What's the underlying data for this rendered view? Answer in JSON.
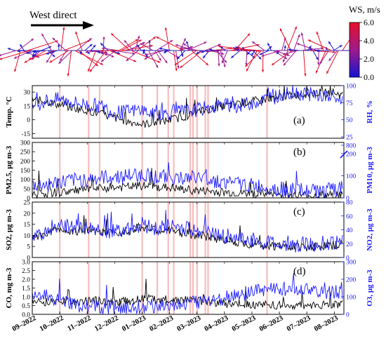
{
  "colors": {
    "black_series": "#000000",
    "blue_series": "#1a1aff",
    "highlight_band": "#f4a6a6",
    "ws_low": "#1414d2",
    "ws_mid": "#a01a8c",
    "ws_high": "#e6102a"
  },
  "wind_panel": {
    "direction_label": "West direct",
    "colorbar_title": "WS, m/s",
    "colorbar_ticks": [
      "0.0",
      "2.0",
      "4.0",
      "6.0"
    ],
    "colorbar_range": [
      0,
      6
    ]
  },
  "x_axis": {
    "ticks": [
      "09–2022",
      "10–2022",
      "11–2022",
      "12–2022",
      "01–2023",
      "02–2023",
      "03–2023",
      "04–2023",
      "05–2023",
      "06–2023",
      "07–2023",
      "08–2023"
    ]
  },
  "highlight_month_positions": [
    1.0,
    2.05,
    2.45,
    4.0,
    4.55,
    4.95,
    5.15,
    5.75,
    5.85,
    6.0,
    6.3,
    6.4,
    8.55
  ],
  "chart_data": [
    {
      "type": "line",
      "panel": "(a)",
      "x_unit": "month index (0 = 09–2022, 11 = 08–2023)",
      "left": {
        "label": "Temp. °C",
        "ticks": [
          "-15",
          "0",
          "15",
          "30"
        ],
        "ylim": [
          -20,
          37
        ]
      },
      "right": {
        "label": "RH, %",
        "ticks": [
          "25",
          "50",
          "75",
          "100"
        ],
        "ylim": [
          23,
          100
        ]
      },
      "series": [
        {
          "axis": "left",
          "color": "black",
          "x": [
            0,
            0.5,
            1,
            1.5,
            2,
            2.5,
            3,
            3.5,
            4,
            4.5,
            5,
            5.5,
            6,
            6.5,
            7,
            7.5,
            8,
            8.5,
            9,
            9.5,
            10,
            10.5,
            11,
            11.3
          ],
          "values": [
            22,
            20,
            16,
            13,
            10,
            6,
            2,
            -2,
            -5,
            -3,
            0,
            3,
            8,
            12,
            15,
            17,
            20,
            22,
            25,
            27,
            28,
            29,
            30,
            26
          ]
        },
        {
          "axis": "right",
          "color": "blue",
          "x": [
            0,
            0.5,
            1,
            1.5,
            2,
            2.5,
            3,
            3.5,
            4,
            4.5,
            5,
            5.5,
            6,
            6.5,
            7,
            7.5,
            8,
            8.5,
            9,
            9.5,
            10,
            10.5,
            11,
            11.3
          ],
          "values": [
            70,
            78,
            80,
            75,
            72,
            70,
            60,
            62,
            65,
            55,
            60,
            62,
            65,
            68,
            72,
            70,
            75,
            80,
            85,
            90,
            88,
            85,
            82,
            78
          ]
        }
      ]
    },
    {
      "type": "line",
      "panel": "(b)",
      "x_unit": "month index (0 = 09–2022, 11 = 08–2023)",
      "left": {
        "label": "PM2.5, μg m-3",
        "ticks": [
          "0",
          "50",
          "100",
          "150",
          "200",
          "250",
          "300"
        ],
        "ylim": [
          0,
          300
        ]
      },
      "right": {
        "label": "PM10, μg m-3",
        "ticks": [
          "0",
          "100",
          "200",
          "800"
        ],
        "ylim": [
          0,
          250
        ],
        "break": true
      },
      "series": [
        {
          "axis": "left",
          "color": "black",
          "x": [
            0,
            0.5,
            1,
            1.5,
            2,
            2.5,
            3,
            3.5,
            4,
            4.5,
            5,
            5.5,
            6,
            6.5,
            7,
            7.5,
            8,
            8.5,
            9,
            9.5,
            10,
            10.5,
            11,
            11.3
          ],
          "values": [
            22,
            25,
            30,
            38,
            45,
            50,
            55,
            60,
            65,
            58,
            55,
            45,
            40,
            35,
            30,
            26,
            22,
            20,
            15,
            12,
            12,
            13,
            15,
            18
          ]
        },
        {
          "axis": "right",
          "color": "blue",
          "x": [
            0,
            0.5,
            1,
            1.5,
            2,
            2.5,
            3,
            3.5,
            4,
            4.5,
            5,
            5.5,
            6,
            6.5,
            7,
            7.5,
            8,
            8.5,
            9,
            9.5,
            10,
            10.5,
            11,
            11.3
          ],
          "values": [
            55,
            60,
            70,
            78,
            85,
            90,
            95,
            100,
            105,
            95,
            92,
            85,
            95,
            80,
            70,
            62,
            55,
            50,
            40,
            35,
            30,
            32,
            35,
            40
          ]
        }
      ]
    },
    {
      "type": "line",
      "panel": "(c)",
      "x_unit": "month index (0 = 09–2022, 11 = 08–2023)",
      "left": {
        "label": "SO2, μg m-3",
        "ticks": [
          "0",
          "5",
          "10",
          "15",
          "20",
          "25"
        ],
        "ylim": [
          0,
          25
        ]
      },
      "right": {
        "label": "NO2, μg m-3",
        "ticks": [
          "0",
          "20",
          "40",
          "60",
          "80"
        ],
        "ylim": [
          0,
          80
        ]
      },
      "series": [
        {
          "axis": "left",
          "color": "black",
          "x": [
            0,
            0.5,
            1,
            1.5,
            2,
            2.5,
            3,
            3.5,
            4,
            4.5,
            5,
            5.5,
            6,
            6.5,
            7,
            7.5,
            8,
            8.5,
            9,
            9.5,
            10,
            10.5,
            11,
            11.3
          ],
          "values": [
            9,
            11,
            13,
            12,
            12,
            11,
            11,
            12,
            14,
            12,
            12,
            11,
            10,
            9,
            8,
            7,
            6,
            5.5,
            5,
            5,
            4.8,
            5,
            5.5,
            6
          ]
        },
        {
          "axis": "right",
          "color": "blue",
          "x": [
            0,
            0.5,
            1,
            1.5,
            2,
            2.5,
            3,
            3.5,
            4,
            4.5,
            5,
            5.5,
            6,
            6.5,
            7,
            7.5,
            8,
            8.5,
            9,
            9.5,
            10,
            10.5,
            11,
            11.3
          ],
          "values": [
            30,
            38,
            45,
            45,
            42,
            40,
            38,
            42,
            48,
            42,
            45,
            42,
            40,
            35,
            32,
            28,
            25,
            22,
            20,
            18,
            18,
            20,
            22,
            25
          ]
        }
      ]
    },
    {
      "type": "line",
      "panel": "(d)",
      "x_unit": "month index (0 = 09–2022, 11 = 08–2023)",
      "left": {
        "label": "CO, mg m-3",
        "ticks": [
          "0.0",
          "0.5",
          "1.0",
          "1.5",
          "2.0",
          "2.5",
          "3.0"
        ],
        "ylim": [
          0,
          3
        ]
      },
      "right": {
        "label": "O3, μg m-3",
        "ticks": [
          "0",
          "100",
          "200",
          "300"
        ],
        "ylim": [
          0,
          300
        ]
      },
      "series": [
        {
          "axis": "left",
          "color": "black",
          "x": [
            0,
            0.5,
            1,
            1.5,
            2,
            2.5,
            3,
            3.5,
            4,
            4.5,
            5,
            5.5,
            6,
            6.5,
            7,
            7.5,
            8,
            8.5,
            9,
            9.5,
            10,
            10.5,
            11,
            11.3
          ],
          "values": [
            0.75,
            0.7,
            0.8,
            0.7,
            0.75,
            0.8,
            0.7,
            0.75,
            0.9,
            0.85,
            0.85,
            0.8,
            0.8,
            0.7,
            0.6,
            0.6,
            0.55,
            0.55,
            0.5,
            0.5,
            0.5,
            0.52,
            0.55,
            0.6
          ]
        },
        {
          "axis": "right",
          "color": "blue",
          "x": [
            0,
            0.5,
            1,
            1.5,
            2,
            2.5,
            3,
            3.5,
            4,
            4.5,
            5,
            5.5,
            6,
            6.5,
            7,
            7.5,
            8,
            8.5,
            9,
            9.5,
            10,
            10.5,
            11,
            11.3
          ],
          "values": [
            120,
            110,
            70,
            55,
            45,
            40,
            40,
            42,
            45,
            50,
            55,
            60,
            70,
            80,
            95,
            110,
            125,
            140,
            145,
            150,
            135,
            130,
            125,
            120
          ]
        }
      ]
    }
  ],
  "panel_labels": [
    "(a)",
    "(b)",
    "(c)",
    "(d)"
  ]
}
